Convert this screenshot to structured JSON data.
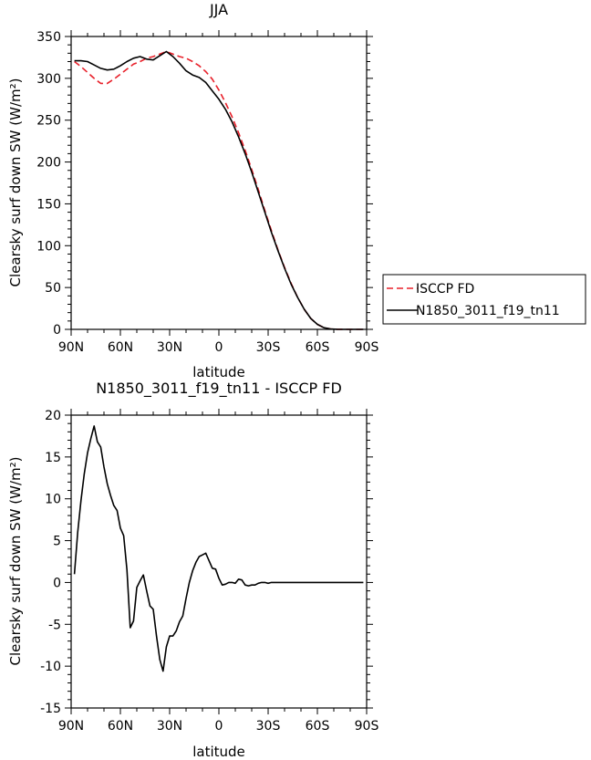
{
  "chart_data": [
    {
      "type": "line",
      "title": "JJA",
      "xlabel": "latitude",
      "ylabel": "Clearsky surf down SW (W/m²)",
      "x_ticks": [
        "90N",
        "60N",
        "30N",
        "0",
        "30S",
        "60S",
        "90S"
      ],
      "x_tick_values": [
        90,
        60,
        30,
        0,
        -30,
        -60,
        -90
      ],
      "xlim": [
        90,
        -90
      ],
      "ylim": [
        0,
        350
      ],
      "y_ticks": [
        0,
        50,
        100,
        150,
        200,
        250,
        300,
        350
      ],
      "legend_position": "right",
      "series": [
        {
          "name": "ISCCP FD",
          "color": "#e8202a",
          "dash": "dashed",
          "x": [
            88,
            84,
            80,
            76,
            72,
            68,
            64,
            60,
            56,
            52,
            48,
            44,
            40,
            36,
            32,
            28,
            24,
            20,
            16,
            12,
            8,
            4,
            0,
            -4,
            -8,
            -12,
            -16,
            -20,
            -24,
            -28,
            -32,
            -36,
            -40,
            -44,
            -48,
            -52,
            -56,
            -60,
            -64,
            -68,
            -72,
            -76,
            -80,
            -84,
            -88
          ],
          "y": [
            320,
            314,
            307,
            300,
            294,
            294,
            299,
            305,
            311,
            317,
            320,
            324,
            326,
            329,
            332,
            329,
            326,
            324,
            320,
            315,
            308,
            299,
            286,
            271,
            254,
            235,
            214,
            191,
            167,
            142,
            118,
            95,
            74,
            55,
            38,
            24,
            13,
            6,
            2,
            0.5,
            0.1,
            0,
            0,
            0,
            0
          ]
        },
        {
          "name": "N1850_3011_f19_tn11",
          "color": "#000000",
          "dash": "solid",
          "x": [
            88,
            84,
            80,
            76,
            72,
            68,
            64,
            60,
            56,
            52,
            48,
            44,
            40,
            36,
            32,
            28,
            24,
            20,
            16,
            12,
            8,
            4,
            0,
            -4,
            -8,
            -12,
            -16,
            -20,
            -24,
            -28,
            -32,
            -36,
            -40,
            -44,
            -48,
            -52,
            -56,
            -60,
            -64,
            -68,
            -72,
            -76,
            -80,
            -84,
            -88
          ],
          "y": [
            321,
            321,
            320,
            316,
            312,
            310,
            311,
            315,
            320,
            324,
            326,
            323,
            322,
            327,
            332,
            326,
            318,
            309,
            304,
            301,
            295,
            285,
            275,
            263,
            248,
            230,
            210,
            188,
            164,
            140,
            116,
            94,
            73,
            54,
            38,
            24,
            13,
            6,
            2,
            0.5,
            0.1,
            0,
            0,
            0,
            0
          ]
        }
      ]
    },
    {
      "type": "line",
      "title": "N1850_3011_f19_tn11 - ISCCP FD",
      "xlabel": "latitude",
      "ylabel": "Clearsky surf down SW (W/m²)",
      "x_ticks": [
        "90N",
        "60N",
        "30N",
        "0",
        "30S",
        "60S",
        "90S"
      ],
      "x_tick_values": [
        90,
        60,
        30,
        0,
        -30,
        -60,
        -90
      ],
      "xlim": [
        90,
        -90
      ],
      "ylim": [
        -15,
        20
      ],
      "y_ticks": [
        -15,
        -10,
        -5,
        0,
        5,
        10,
        15,
        20
      ],
      "series": [
        {
          "color": "#000000",
          "dash": "solid",
          "x": [
            88,
            86,
            84,
            82,
            80,
            78,
            76,
            74,
            72,
            70,
            68,
            66,
            64,
            62,
            60,
            58,
            56,
            54,
            52,
            50,
            48,
            46,
            44,
            42,
            40,
            38,
            36,
            34,
            32,
            30,
            28,
            26,
            24,
            22,
            20,
            18,
            16,
            14,
            12,
            10,
            8,
            6,
            4,
            2,
            0,
            -2,
            -4,
            -6,
            -8,
            -10,
            -12,
            -14,
            -16,
            -18,
            -20,
            -22,
            -24,
            -26,
            -28,
            -30,
            -32,
            -34,
            -36,
            -38,
            -40,
            -42,
            -44,
            -46,
            -48,
            -50,
            -52,
            -54,
            -56,
            -58,
            -60,
            -62,
            -64,
            -66,
            -68,
            -70,
            -72,
            -74,
            -76,
            -78,
            -80,
            -82,
            -84,
            -86,
            -88
          ],
          "y": [
            1,
            6,
            9.8,
            13,
            15.5,
            17.2,
            18.7,
            16.8,
            16.2,
            13.8,
            11.8,
            10.4,
            9.2,
            8.6,
            6.5,
            5.6,
            1.5,
            -5.4,
            -4.6,
            -0.6,
            0.2,
            0.9,
            -1,
            -2.8,
            -3.2,
            -6.4,
            -9.2,
            -10.6,
            -7.7,
            -6.4,
            -6.4,
            -5.8,
            -4.7,
            -4,
            -1.9,
            0,
            1.4,
            2.4,
            3.1,
            3.3,
            3.5,
            2.6,
            1.7,
            1.6,
            0.5,
            -0.3,
            -0.2,
            0,
            0,
            -0.1,
            0.4,
            0.3,
            -0.3,
            -0.4,
            -0.3,
            -0.3,
            -0.1,
            0,
            0,
            -0.1,
            0,
            0,
            0,
            0,
            0,
            0,
            0,
            0,
            0,
            0,
            0,
            0,
            0,
            0,
            0,
            0,
            0,
            0,
            0,
            0,
            0,
            0,
            0,
            0,
            0,
            0,
            0,
            0,
            0
          ]
        }
      ]
    }
  ]
}
